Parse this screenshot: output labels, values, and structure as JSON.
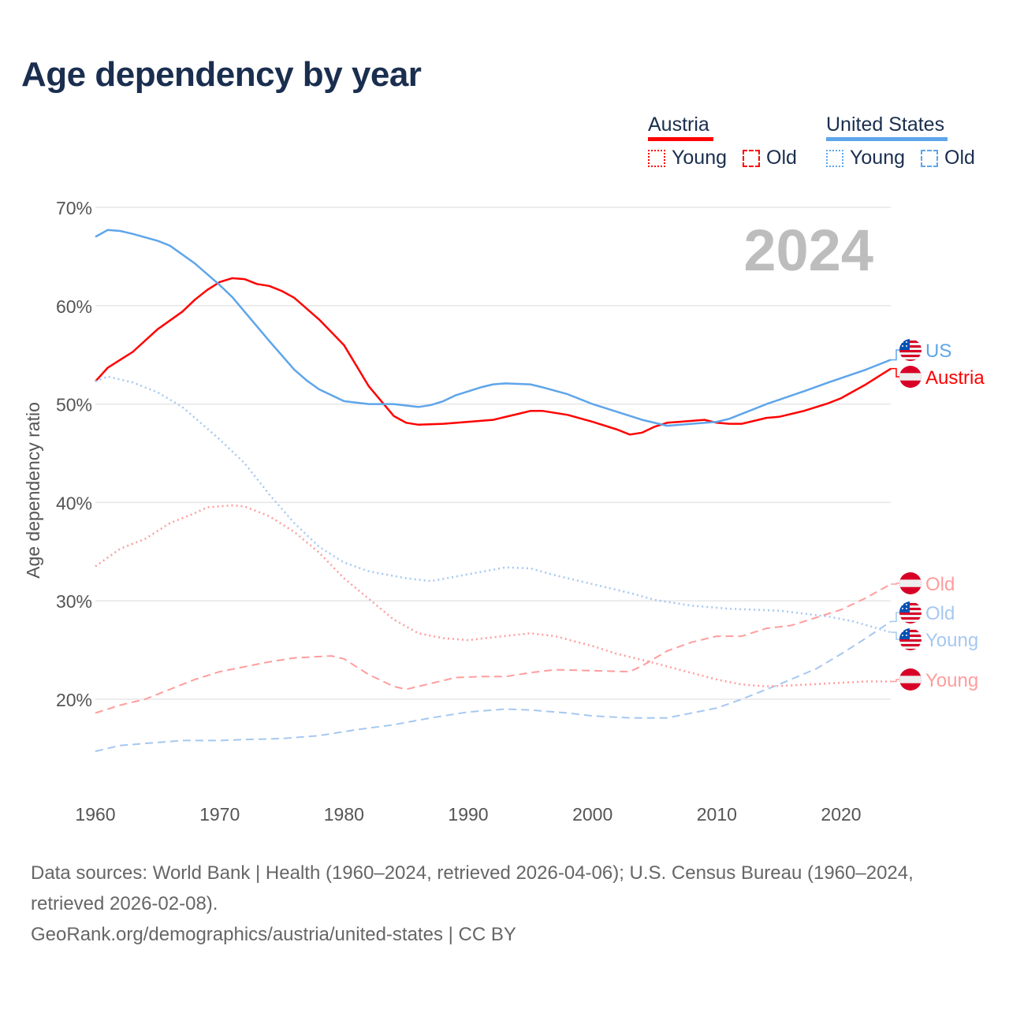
{
  "title": "Age dependency by year",
  "legend": {
    "austria": {
      "label": "Austria",
      "young": "Young",
      "old": "Old"
    },
    "us": {
      "label": "United States",
      "young": "Young",
      "old": "Old"
    }
  },
  "colors": {
    "austria": "#ff0000",
    "austria_light": "#ff9d9d",
    "us": "#5ea5ea",
    "us_light": "#a6c8f0",
    "year": "#bdbdbd"
  },
  "end_labels": {
    "us_total": "US",
    "austria_total": "Austria",
    "austria_old": "Old",
    "us_old": "Old",
    "us_young": "Young",
    "austria_young": "Young"
  },
  "chart_data": {
    "type": "line",
    "title": "Age dependency by year",
    "year_label": "2024",
    "xlabel": "",
    "ylabel": "Age dependency ratio",
    "xlim": [
      1960,
      2024
    ],
    "ylim": [
      13,
      70
    ],
    "xticks": [
      1960,
      1970,
      1980,
      1990,
      2000,
      2010,
      2020
    ],
    "xtick_labels": [
      "1960",
      "1970",
      "1980",
      "1990",
      "2000",
      "2010",
      "2020"
    ],
    "yticks": [
      20,
      30,
      40,
      50,
      60,
      70
    ],
    "ytick_labels": [
      "20%",
      "30%",
      "40%",
      "50%",
      "60%",
      "70%"
    ],
    "grid": true,
    "series": [
      {
        "name": "Austria Total",
        "country": "Austria",
        "kind": "total",
        "points": [
          [
            1960,
            52.3
          ],
          [
            1961,
            53.7
          ],
          [
            1962,
            54.5
          ],
          [
            1963,
            55.3
          ],
          [
            1965,
            57.6
          ],
          [
            1967,
            59.4
          ],
          [
            1968,
            60.6
          ],
          [
            1969,
            61.6
          ],
          [
            1970,
            62.4
          ],
          [
            1971,
            62.8
          ],
          [
            1972,
            62.7
          ],
          [
            1973,
            62.2
          ],
          [
            1974,
            62.0
          ],
          [
            1975,
            61.5
          ],
          [
            1976,
            60.8
          ],
          [
            1978,
            58.6
          ],
          [
            1980,
            56.0
          ],
          [
            1982,
            51.8
          ],
          [
            1984,
            48.8
          ],
          [
            1985,
            48.1
          ],
          [
            1986,
            47.9
          ],
          [
            1988,
            48.0
          ],
          [
            1990,
            48.2
          ],
          [
            1992,
            48.4
          ],
          [
            1994,
            49.0
          ],
          [
            1995,
            49.3
          ],
          [
            1996,
            49.3
          ],
          [
            1998,
            48.9
          ],
          [
            2000,
            48.2
          ],
          [
            2002,
            47.4
          ],
          [
            2003,
            46.9
          ],
          [
            2004,
            47.1
          ],
          [
            2005,
            47.7
          ],
          [
            2006,
            48.1
          ],
          [
            2007,
            48.2
          ],
          [
            2009,
            48.4
          ],
          [
            2010,
            48.1
          ],
          [
            2011,
            48.0
          ],
          [
            2012,
            48.0
          ],
          [
            2014,
            48.6
          ],
          [
            2015,
            48.7
          ],
          [
            2017,
            49.3
          ],
          [
            2019,
            50.1
          ],
          [
            2020,
            50.6
          ],
          [
            2022,
            52.0
          ],
          [
            2024,
            53.6
          ]
        ]
      },
      {
        "name": "US Total",
        "country": "United States",
        "kind": "total",
        "points": [
          [
            1960,
            67.0
          ],
          [
            1961,
            67.7
          ],
          [
            1962,
            67.6
          ],
          [
            1963,
            67.3
          ],
          [
            1965,
            66.6
          ],
          [
            1966,
            66.1
          ],
          [
            1968,
            64.3
          ],
          [
            1970,
            62.1
          ],
          [
            1971,
            60.9
          ],
          [
            1972,
            59.4
          ],
          [
            1974,
            56.4
          ],
          [
            1976,
            53.5
          ],
          [
            1977,
            52.4
          ],
          [
            1978,
            51.5
          ],
          [
            1979,
            50.9
          ],
          [
            1980,
            50.3
          ],
          [
            1982,
            50.0
          ],
          [
            1984,
            50.0
          ],
          [
            1986,
            49.7
          ],
          [
            1987,
            49.9
          ],
          [
            1988,
            50.3
          ],
          [
            1989,
            50.9
          ],
          [
            1990,
            51.3
          ],
          [
            1991,
            51.7
          ],
          [
            1992,
            52.0
          ],
          [
            1993,
            52.1
          ],
          [
            1995,
            52.0
          ],
          [
            1996,
            51.7
          ],
          [
            1998,
            51.0
          ],
          [
            2000,
            50.0
          ],
          [
            2002,
            49.2
          ],
          [
            2004,
            48.4
          ],
          [
            2006,
            47.8
          ],
          [
            2008,
            48.0
          ],
          [
            2010,
            48.2
          ],
          [
            2011,
            48.5
          ],
          [
            2014,
            50.0
          ],
          [
            2017,
            51.3
          ],
          [
            2019,
            52.2
          ],
          [
            2022,
            53.5
          ],
          [
            2024,
            54.5
          ]
        ]
      },
      {
        "name": "US Young",
        "country": "United States",
        "kind": "young",
        "points": [
          [
            1960,
            52.3
          ],
          [
            1961,
            52.8
          ],
          [
            1963,
            52.2
          ],
          [
            1965,
            51.2
          ],
          [
            1967,
            49.7
          ],
          [
            1970,
            46.4
          ],
          [
            1972,
            44.0
          ],
          [
            1974,
            40.8
          ],
          [
            1976,
            37.9
          ],
          [
            1978,
            35.5
          ],
          [
            1980,
            33.9
          ],
          [
            1982,
            33.0
          ],
          [
            1985,
            32.3
          ],
          [
            1987,
            32.0
          ],
          [
            1990,
            32.7
          ],
          [
            1993,
            33.4
          ],
          [
            1995,
            33.3
          ],
          [
            1997,
            32.6
          ],
          [
            2000,
            31.7
          ],
          [
            2003,
            30.8
          ],
          [
            2005,
            30.1
          ],
          [
            2008,
            29.5
          ],
          [
            2011,
            29.2
          ],
          [
            2015,
            29.0
          ],
          [
            2019,
            28.4
          ],
          [
            2021,
            27.9
          ],
          [
            2024,
            26.8
          ]
        ]
      },
      {
        "name": "US Old",
        "country": "United States",
        "kind": "old",
        "points": [
          [
            1960,
            14.7
          ],
          [
            1962,
            15.3
          ],
          [
            1965,
            15.6
          ],
          [
            1967,
            15.8
          ],
          [
            1970,
            15.8
          ],
          [
            1972,
            15.9
          ],
          [
            1975,
            16.0
          ],
          [
            1978,
            16.3
          ],
          [
            1981,
            16.9
          ],
          [
            1984,
            17.4
          ],
          [
            1987,
            18.1
          ],
          [
            1990,
            18.7
          ],
          [
            1993,
            19.0
          ],
          [
            1995,
            18.9
          ],
          [
            1998,
            18.6
          ],
          [
            2000,
            18.3
          ],
          [
            2003,
            18.1
          ],
          [
            2006,
            18.1
          ],
          [
            2008,
            18.6
          ],
          [
            2010,
            19.1
          ],
          [
            2012,
            20.0
          ],
          [
            2015,
            21.5
          ],
          [
            2018,
            23.1
          ],
          [
            2020,
            24.6
          ],
          [
            2022,
            26.2
          ],
          [
            2024,
            27.9
          ]
        ]
      },
      {
        "name": "Austria Young",
        "country": "Austria",
        "kind": "young",
        "points": [
          [
            1960,
            33.5
          ],
          [
            1962,
            35.3
          ],
          [
            1964,
            36.3
          ],
          [
            1966,
            37.9
          ],
          [
            1968,
            38.9
          ],
          [
            1969,
            39.5
          ],
          [
            1971,
            39.7
          ],
          [
            1972,
            39.6
          ],
          [
            1974,
            38.6
          ],
          [
            1976,
            37.0
          ],
          [
            1978,
            34.9
          ],
          [
            1980,
            32.3
          ],
          [
            1982,
            30.2
          ],
          [
            1984,
            28.1
          ],
          [
            1986,
            26.7
          ],
          [
            1988,
            26.2
          ],
          [
            1990,
            26.0
          ],
          [
            1992,
            26.3
          ],
          [
            1995,
            26.7
          ],
          [
            1997,
            26.4
          ],
          [
            2000,
            25.4
          ],
          [
            2002,
            24.6
          ],
          [
            2004,
            24.0
          ],
          [
            2007,
            23.0
          ],
          [
            2010,
            22.0
          ],
          [
            2012,
            21.5
          ],
          [
            2014,
            21.3
          ],
          [
            2016,
            21.4
          ],
          [
            2019,
            21.6
          ],
          [
            2022,
            21.8
          ],
          [
            2024,
            21.8
          ]
        ]
      },
      {
        "name": "Austria Old",
        "country": "Austria",
        "kind": "old",
        "points": [
          [
            1960,
            18.6
          ],
          [
            1962,
            19.4
          ],
          [
            1964,
            20.0
          ],
          [
            1966,
            21.0
          ],
          [
            1968,
            22.0
          ],
          [
            1970,
            22.8
          ],
          [
            1972,
            23.3
          ],
          [
            1974,
            23.8
          ],
          [
            1976,
            24.2
          ],
          [
            1979,
            24.4
          ],
          [
            1980,
            24.1
          ],
          [
            1982,
            22.5
          ],
          [
            1984,
            21.3
          ],
          [
            1985,
            21.0
          ],
          [
            1987,
            21.6
          ],
          [
            1989,
            22.2
          ],
          [
            1991,
            22.3
          ],
          [
            1993,
            22.3
          ],
          [
            1995,
            22.7
          ],
          [
            1997,
            23.0
          ],
          [
            2000,
            22.9
          ],
          [
            2003,
            22.8
          ],
          [
            2004,
            23.4
          ],
          [
            2006,
            24.9
          ],
          [
            2008,
            25.8
          ],
          [
            2010,
            26.4
          ],
          [
            2012,
            26.4
          ],
          [
            2014,
            27.2
          ],
          [
            2016,
            27.5
          ],
          [
            2018,
            28.3
          ],
          [
            2020,
            29.1
          ],
          [
            2022,
            30.3
          ],
          [
            2024,
            31.7
          ]
        ]
      }
    ],
    "legend_position": "top-right"
  },
  "footer": {
    "sources": "Data sources: World Bank | Health (1960–2024, retrieved 2026-04-06); U.S. Census Bureau (1960–2024, retrieved 2026-02-08).",
    "attribution": "GeoRank.org/demographics/austria/united-states | CC BY"
  }
}
